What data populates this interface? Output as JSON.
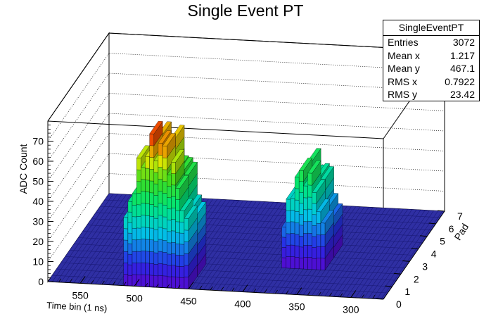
{
  "title": "Single Event PT",
  "stats_box": {
    "name": "SingleEventPT",
    "rows": [
      {
        "label": "Entries",
        "value": "3072"
      },
      {
        "label": "Mean x",
        "value": "1.217"
      },
      {
        "label": "Mean y",
        "value": "467.1"
      },
      {
        "label": "RMS x",
        "value": "0.7922"
      },
      {
        "label": "RMS y",
        "value": "23.42"
      }
    ]
  },
  "chart_data": {
    "type": "lego3d",
    "title": "Single Event PT",
    "xlabel": "Time bin (1 ns)",
    "ylabel": "Pad",
    "zlabel": "ADC Count",
    "x_ticks": [
      "550",
      "500",
      "450",
      "400",
      "350",
      "300"
    ],
    "y_ticks": [
      "0",
      "1",
      "2",
      "3",
      "4",
      "5",
      "6",
      "7"
    ],
    "z_ticks": [
      "0",
      "10",
      "20",
      "30",
      "40",
      "50",
      "60",
      "70"
    ],
    "grid": true,
    "palette": "rainbow",
    "pulses": [
      {
        "time_range": [
          450,
          510
        ],
        "pad": 0,
        "peak_adc": 78
      },
      {
        "time_range": [
          340,
          380
        ],
        "pad": 2,
        "peak_adc": 52
      }
    ]
  }
}
